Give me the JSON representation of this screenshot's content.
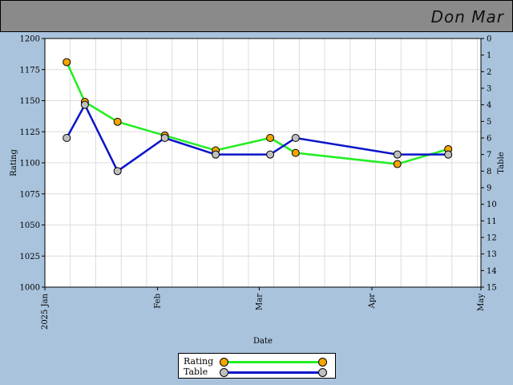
{
  "header": {
    "player_name": "Don Mar"
  },
  "colors": {
    "rating_line": "#22ee22",
    "rating_marker": "#f5a500",
    "table_line": "#0a14c8",
    "table_marker": "#c0c0c0"
  },
  "legend": {
    "rating_label": "Rating",
    "table_label": "Table"
  },
  "chart_data": {
    "type": "line",
    "xlabel": "Date",
    "ylabel_left": "Rating",
    "ylabel_right": "Table",
    "x_range": [
      "2025-01-01",
      "2025-05-01"
    ],
    "x_ticks": [
      {
        "date": "2025-01-01",
        "label": "2025 Jan"
      },
      {
        "date": "2025-02-01",
        "label": "Feb"
      },
      {
        "date": "2025-03-01",
        "label": "Mar"
      },
      {
        "date": "2025-04-01",
        "label": "Apr"
      },
      {
        "date": "2025-05-01",
        "label": "May"
      }
    ],
    "ylim_left": [
      1000,
      1200
    ],
    "yticks_left": [
      1000,
      1025,
      1050,
      1075,
      1100,
      1125,
      1150,
      1175,
      1200
    ],
    "ylim_right": [
      0,
      15
    ],
    "yticks_right": [
      0,
      1,
      2,
      3,
      4,
      5,
      6,
      7,
      8,
      9,
      10,
      11,
      12,
      13,
      14,
      15
    ],
    "right_axis_inverted": true,
    "grid": true,
    "legend_position": "bottom-center",
    "series": [
      {
        "name": "Rating",
        "axis": "left",
        "points": [
          {
            "x": "2025-01-07",
            "y": 1181
          },
          {
            "x": "2025-01-12",
            "y": 1149
          },
          {
            "x": "2025-01-21",
            "y": 1133
          },
          {
            "x": "2025-02-03",
            "y": 1122
          },
          {
            "x": "2025-02-17",
            "y": 1110
          },
          {
            "x": "2025-03-04",
            "y": 1120
          },
          {
            "x": "2025-03-11",
            "y": 1108
          },
          {
            "x": "2025-04-08",
            "y": 1099
          },
          {
            "x": "2025-04-22",
            "y": 1111
          }
        ]
      },
      {
        "name": "Table",
        "axis": "right",
        "points": [
          {
            "x": "2025-01-07",
            "y": 6
          },
          {
            "x": "2025-01-12",
            "y": 4
          },
          {
            "x": "2025-01-21",
            "y": 8
          },
          {
            "x": "2025-02-03",
            "y": 6
          },
          {
            "x": "2025-02-17",
            "y": 7
          },
          {
            "x": "2025-03-04",
            "y": 7
          },
          {
            "x": "2025-03-11",
            "y": 6
          },
          {
            "x": "2025-04-08",
            "y": 7
          },
          {
            "x": "2025-04-22",
            "y": 7
          }
        ]
      }
    ]
  }
}
